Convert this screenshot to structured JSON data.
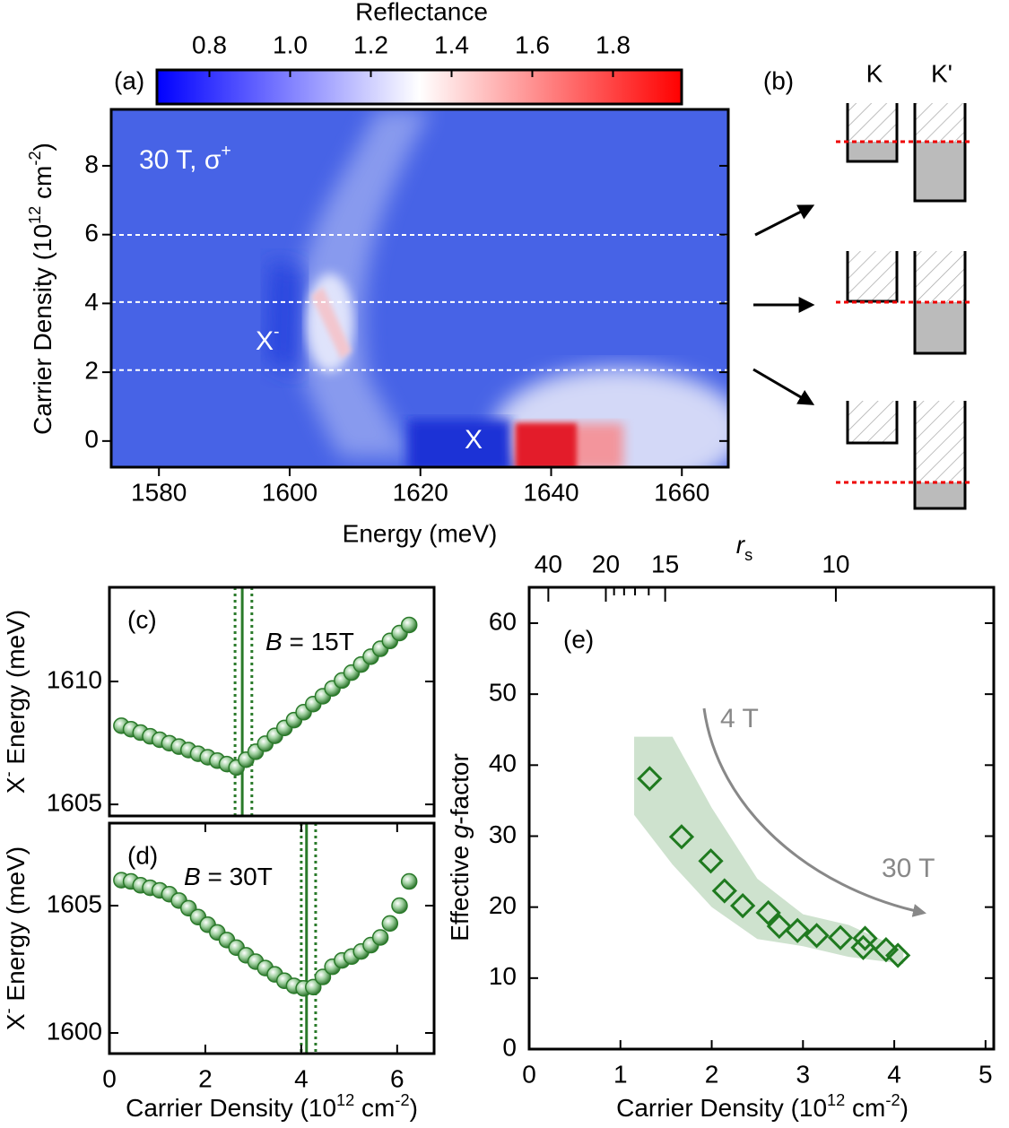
{
  "chart_data": [
    {
      "type": "heatmap",
      "panel": "(a)",
      "xlabel": "Energy (meV)",
      "ylabel": [
        "Carrier Density (10",
        "12",
        " cm",
        "-2",
        ")"
      ],
      "xlim": [
        1572.7,
        1667.1
      ],
      "ylim": [
        -0.76,
        9.64
      ],
      "xticks": [
        1580,
        1600,
        1620,
        1640,
        1660
      ],
      "yticks": [
        0,
        2,
        4,
        6,
        8
      ],
      "colorbar": {
        "label": "Reflectance",
        "clim": [
          0.67,
          1.97
        ],
        "ticks": [
          0.8,
          {
            "value": 1,
            "label": "1.0"
          },
          1.2,
          1.4,
          1.6,
          1.8
        ],
        "colormap": [
          "#0000ff",
          "#ffffff",
          "#ff0000"
        ]
      },
      "hlines": [
        2.06,
        4.04,
        5.99
      ],
      "annotations": [
        [
          "30 T, σ",
          "+"
        ],
        [
          "X",
          "-"
        ],
        "X"
      ]
    },
    {
      "type": "scatter",
      "panel": "(c)",
      "ylabel": [
        "X",
        "-",
        " Energy (meV)"
      ],
      "xlim": [
        0,
        6.77
      ],
      "ylim": [
        1604.53,
        1613.83
      ],
      "yticks": [
        1605,
        1610
      ],
      "x": [
        0.25,
        0.45,
        0.65,
        0.85,
        1.05,
        1.25,
        1.45,
        1.65,
        1.85,
        2.05,
        2.25,
        2.45,
        2.65,
        2.85,
        3.05,
        3.25,
        3.45,
        3.65,
        3.85,
        4.05,
        4.25,
        4.45,
        4.65,
        4.85,
        5.05,
        5.25,
        5.45,
        5.65,
        5.85,
        6.05,
        6.25
      ],
      "values": [
        1608.2,
        1608.06,
        1607.92,
        1607.77,
        1607.63,
        1607.49,
        1607.35,
        1607.21,
        1607.06,
        1606.92,
        1606.78,
        1606.64,
        1606.5,
        1606.82,
        1607.14,
        1607.47,
        1607.79,
        1608.11,
        1608.43,
        1608.75,
        1609.08,
        1609.4,
        1609.72,
        1610.04,
        1610.36,
        1610.69,
        1611.01,
        1611.33,
        1611.65,
        1611.97,
        1612.3
      ],
      "color": "#2a7a2a",
      "vline": 2.77,
      "vline_range": [
        2.62,
        2.97
      ],
      "annotation": [
        "B",
        " = 15T"
      ]
    },
    {
      "type": "scatter",
      "panel": "(d)",
      "ylabel": [
        "X",
        "-",
        " Energy (meV)"
      ],
      "xlabel": [
        "Carrier Density (10",
        "12",
        " cm",
        "-2",
        ")"
      ],
      "xlim": [
        0,
        6.77
      ],
      "ylim": [
        1599.19,
        1608.24
      ],
      "xticks": [
        0,
        2,
        4,
        6
      ],
      "yticks": [
        1600,
        1605
      ],
      "x": [
        0.25,
        0.45,
        0.65,
        0.85,
        1.05,
        1.25,
        1.45,
        1.65,
        1.85,
        2.05,
        2.25,
        2.45,
        2.65,
        2.85,
        3.05,
        3.25,
        3.45,
        3.65,
        3.85,
        4.05,
        4.25,
        4.45,
        4.65,
        4.85,
        5.05,
        5.25,
        5.45,
        5.65,
        5.85,
        6.05,
        6.25
      ],
      "values": [
        1606.0,
        1605.95,
        1605.8,
        1605.7,
        1605.6,
        1605.45,
        1605.2,
        1604.9,
        1604.55,
        1604.25,
        1603.95,
        1603.65,
        1603.35,
        1603.05,
        1602.8,
        1602.55,
        1602.3,
        1602.05,
        1601.85,
        1601.75,
        1601.8,
        1602.2,
        1602.6,
        1602.85,
        1603.0,
        1603.2,
        1603.45,
        1603.75,
        1604.3,
        1605.0,
        1605.95
      ],
      "color": "#2a7a2a",
      "vline": 4.11,
      "vline_range": [
        4.0,
        4.3
      ],
      "annotation": [
        "B",
        " = 30T"
      ]
    },
    {
      "type": "diamond",
      "panel": "(e)",
      "xlabel": [
        "Carrier Density (10",
        "12",
        " cm",
        "-2",
        ")"
      ],
      "ylabel": [
        "Effective ",
        "g",
        "-factor"
      ],
      "x2label": [
        "r",
        "s"
      ],
      "xlim": [
        0,
        5.09
      ],
      "ylim": [
        0,
        65.05
      ],
      "xticks": [
        0,
        1,
        2,
        3,
        4,
        5
      ],
      "yticks": [
        0,
        10,
        20,
        30,
        40,
        50,
        60
      ],
      "x2ticks": [
        {
          "value": 0.21,
          "label": "40"
        },
        {
          "value": 0.84,
          "label": "20"
        },
        {
          "value": 1.49,
          "label": "15"
        },
        {
          "value": 3.36,
          "label": "10"
        }
      ],
      "x2minor": [
        0.93,
        1.04,
        1.16,
        1.31
      ],
      "x": [
        1.32,
        1.67,
        1.99,
        2.14,
        2.34,
        2.62,
        2.74,
        2.94,
        3.15,
        3.41,
        3.68,
        3.66,
        3.91,
        4.04
      ],
      "values": [
        38.1,
        29.9,
        26.5,
        22.3,
        20.2,
        19.2,
        17.3,
        16.7,
        16.0,
        15.7,
        15.6,
        14.3,
        14.0,
        13.2
      ],
      "color": "#1f7a1f",
      "band": {
        "x": [
          1.15,
          1.57,
          2.0,
          2.5,
          3.0,
          3.5,
          4.1
        ],
        "upper": [
          44,
          44,
          34,
          24,
          19,
          17.5,
          14
        ],
        "lower": [
          33,
          26,
          20,
          15.5,
          14.5,
          13,
          12
        ]
      },
      "annotations": [
        "4 T",
        "30 T"
      ]
    }
  ],
  "diagram": {
    "panel": "(b)",
    "valleys": [
      "K",
      "K'"
    ]
  }
}
